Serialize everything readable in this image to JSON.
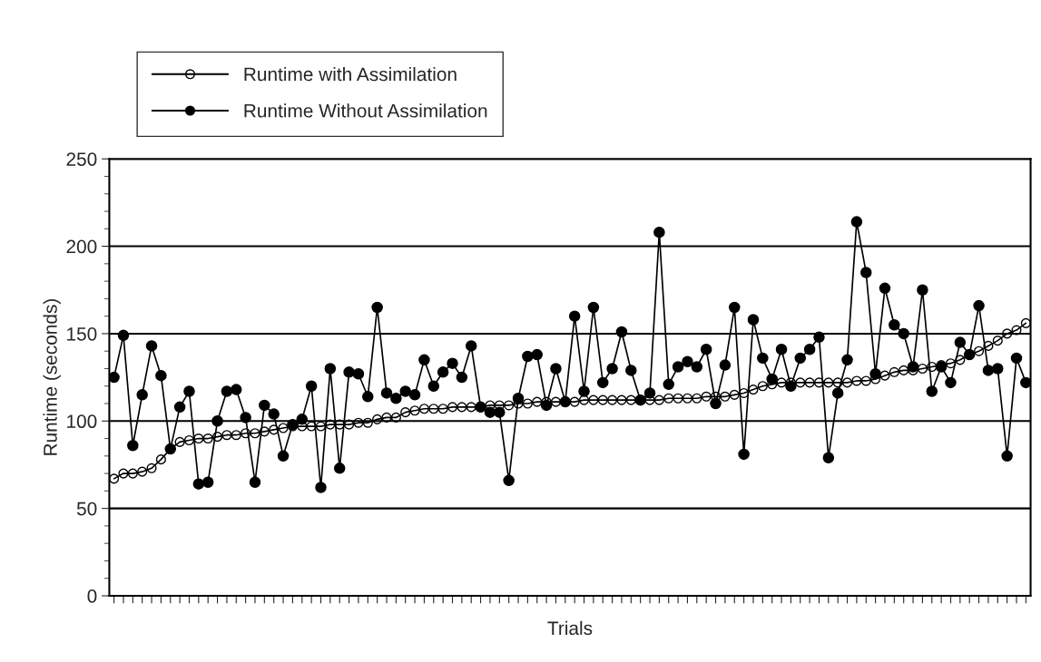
{
  "chart_data": {
    "type": "line",
    "xlabel": "Trials",
    "ylabel": "Runtime (seconds)",
    "categories": [
      null,
      null,
      null,
      null,
      null,
      null,
      null,
      null,
      null,
      null,
      null,
      null,
      null,
      null,
      null,
      null,
      null,
      null,
      null,
      null,
      null,
      null,
      null,
      null,
      null,
      null,
      null,
      null,
      null,
      null,
      null,
      null,
      null,
      null,
      null,
      null,
      null,
      null,
      null,
      null,
      null,
      null,
      null,
      null,
      null,
      null,
      null,
      null,
      null,
      null,
      null,
      null,
      null,
      null,
      null,
      null,
      null,
      null,
      null,
      null,
      null,
      null,
      null,
      null,
      null,
      null,
      null,
      null,
      null,
      null,
      null,
      null,
      null,
      null,
      null,
      null,
      null,
      null,
      null,
      null,
      null,
      null,
      null,
      null,
      null,
      null,
      null,
      null,
      null,
      null,
      null,
      null,
      null,
      null,
      null,
      null,
      null,
      null
    ],
    "series": [
      {
        "name": "Runtime with Assimilation",
        "color": "#000000",
        "values": [
          67,
          70,
          70,
          71,
          73,
          78,
          84,
          88,
          89,
          90,
          90,
          91,
          92,
          92,
          93,
          93,
          94,
          95,
          96,
          97,
          97,
          97,
          97,
          98,
          98,
          98,
          99,
          99,
          101,
          102,
          102,
          105,
          106,
          107,
          107,
          107,
          108,
          108,
          108,
          108,
          109,
          109,
          109,
          110,
          110,
          111,
          111,
          111,
          111,
          111,
          112,
          112,
          112,
          112,
          112,
          112,
          112,
          112,
          112,
          113,
          113,
          113,
          113,
          114,
          114,
          114,
          115,
          116,
          118,
          120,
          121,
          122,
          122,
          122,
          122,
          122,
          122,
          122,
          122,
          123,
          123,
          124,
          126,
          128,
          129,
          129,
          130,
          131,
          132,
          133,
          135,
          138,
          140,
          143,
          146,
          150,
          152,
          156
        ]
      },
      {
        "name": "Runtime Without Assimilation",
        "color": "#000000",
        "values": [
          125,
          149,
          86,
          115,
          143,
          126,
          84,
          108,
          117,
          64,
          65,
          100,
          117,
          118,
          102,
          65,
          109,
          104,
          80,
          98,
          101,
          120,
          62,
          130,
          73,
          128,
          127,
          114,
          165,
          116,
          113,
          117,
          115,
          135,
          120,
          128,
          133,
          125,
          143,
          108,
          105,
          105,
          66,
          113,
          137,
          138,
          109,
          130,
          111,
          160,
          117,
          165,
          122,
          130,
          151,
          129,
          112,
          116,
          208,
          121,
          131,
          134,
          131,
          141,
          110,
          132,
          165,
          81,
          158,
          136,
          124,
          141,
          120,
          136,
          141,
          148,
          79,
          116,
          135,
          214,
          185,
          127,
          176,
          155,
          150,
          131,
          175,
          117,
          131,
          122,
          145,
          138,
          166,
          129,
          130,
          80,
          136,
          122
        ]
      }
    ],
    "ylim": [
      0,
      250
    ],
    "yticks": [
      0,
      50,
      100,
      150,
      200,
      250
    ],
    "grid": "y",
    "legend": "top left",
    "marker": "circle",
    "line_style": "solid",
    "tick_labels": "y"
  }
}
